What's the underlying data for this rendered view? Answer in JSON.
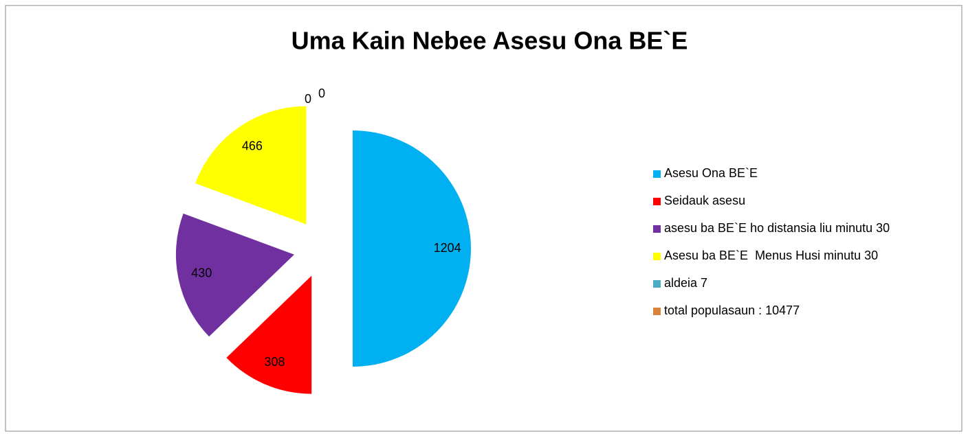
{
  "chart_data": {
    "type": "pie",
    "title": "Uma Kain Nebee Asesu Ona BE`E",
    "categories": [
      "Asesu Ona BE`E",
      "Seidauk asesu",
      "asesu ba BE`E ho distansia liu minutu 30",
      "Asesu ba BE`E  Menus Husi minutu 30",
      "aldeia 7",
      "total populasaun : 10477"
    ],
    "values": [
      1204,
      308,
      430,
      466,
      0,
      0
    ],
    "colors": [
      "#00b0f0",
      "#ff0000",
      "#7030a0",
      "#ffff00",
      "#4bacc6",
      "#d9843d"
    ],
    "legend": "right"
  }
}
